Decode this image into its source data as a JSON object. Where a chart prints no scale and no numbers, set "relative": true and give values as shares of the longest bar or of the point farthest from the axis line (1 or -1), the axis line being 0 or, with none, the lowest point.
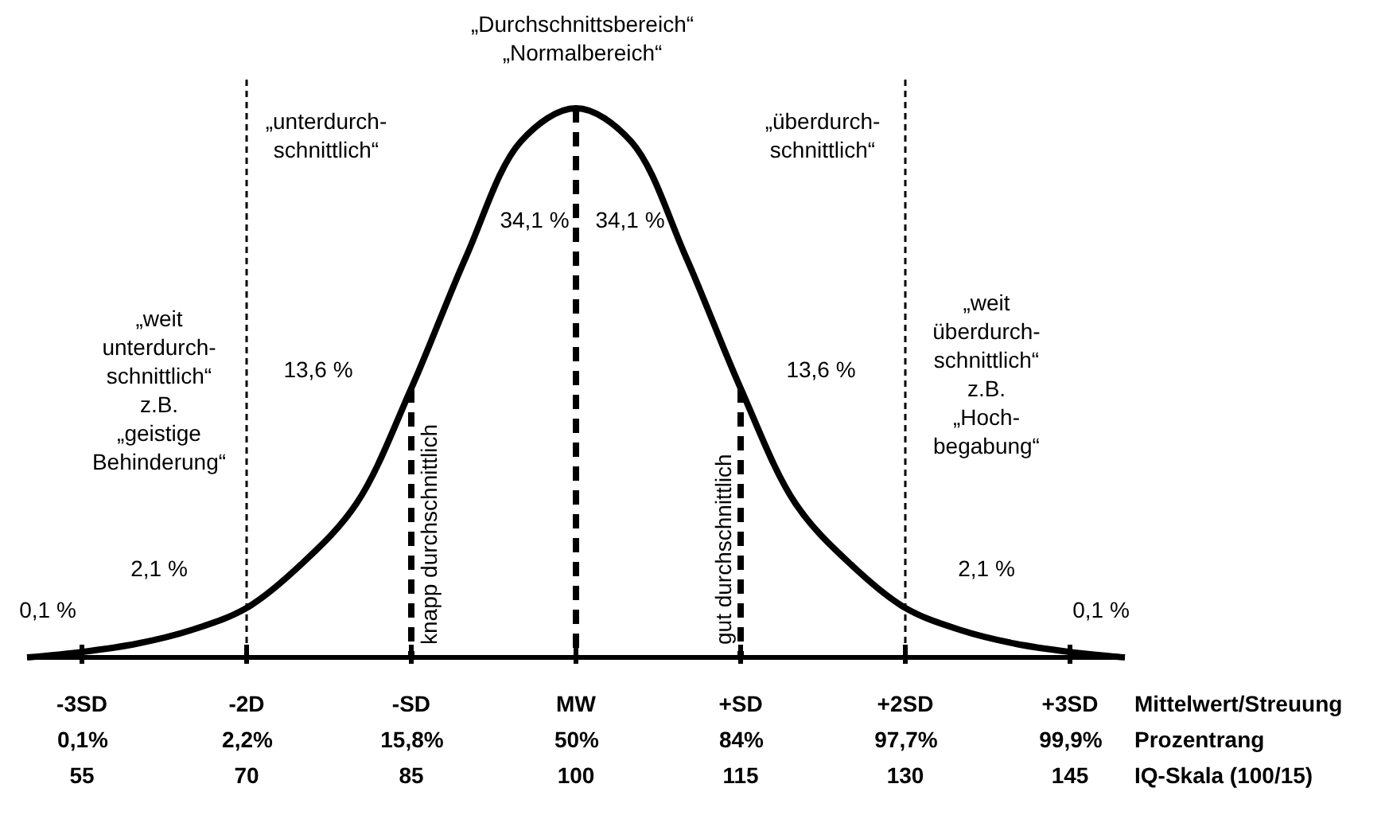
{
  "chart_data": {
    "type": "line",
    "relative": true,
    "title": "„Durchschnittsbereich“",
    "subtitle": "„Normalbereich“",
    "x": [
      50,
      55,
      60,
      65,
      70,
      75,
      80,
      85,
      90,
      95,
      100,
      105,
      110,
      115,
      120,
      125,
      130,
      135,
      140,
      145,
      150
    ],
    "series": [
      {
        "color": "#000000",
        "values": [
          0,
          0.01,
          0.025,
          0.05,
          0.09,
          0.17,
          0.28,
          0.49,
          0.73,
          0.94,
          1,
          0.94,
          0.73,
          0.49,
          0.28,
          0.17,
          0.09,
          0.05,
          0.025,
          0.01,
          0
        ]
      }
    ],
    "xlim": [
      50,
      150
    ],
    "xticks": [
      55,
      70,
      85,
      100,
      115,
      130,
      145
    ],
    "xlabel": "IQ-Skala (100/15)",
    "x2lim": [
      -3.3333,
      3.3333
    ],
    "x2ticks": [
      {
        "value": -3,
        "label": "-3SD"
      },
      {
        "value": -2,
        "label": "-2D"
      },
      {
        "value": -1,
        "label": "-SD"
      },
      {
        "value": 0,
        "label": "MW"
      },
      {
        "value": 1,
        "label": "+SD"
      },
      {
        "value": 2,
        "label": "+2SD"
      },
      {
        "value": 3,
        "label": "+3SD"
      }
    ],
    "x2label": "Mittelwert/Streuung",
    "ref_lines": [
      {
        "axis": "x",
        "value": 70,
        "line_style": "dotted"
      },
      {
        "axis": "x",
        "value": 85,
        "line_style": "dashed",
        "label": "knapp durchschnittlich"
      },
      {
        "axis": "x",
        "value": 100,
        "line_style": "dashed"
      },
      {
        "axis": "x",
        "value": 115,
        "line_style": "dashed",
        "label": "gut durchschnittlich"
      },
      {
        "axis": "x",
        "value": 130,
        "line_style": "dotted"
      }
    ],
    "annotations": [
      "„unterdurch-\nschnittlich“",
      "„überdurch-\nschnittlich“",
      "34,1 %",
      "34,1 %",
      "„weit\nunterdurch-\nschnittlich“\nz.B.\n„geistige\nBehinderung“",
      "„weit\nüberdurch-\nschnittlich“\nz.B.\n„Hoch-\nbegabung“",
      "13,6 %",
      "13,6 %",
      "2,1 %",
      "2,1 %",
      "0,1 %",
      "0,1 %",
      "0,1%",
      "2,2%",
      "15,8%",
      "50%",
      "84%",
      "97,7%",
      "99,9%",
      "Prozentrang"
    ]
  }
}
